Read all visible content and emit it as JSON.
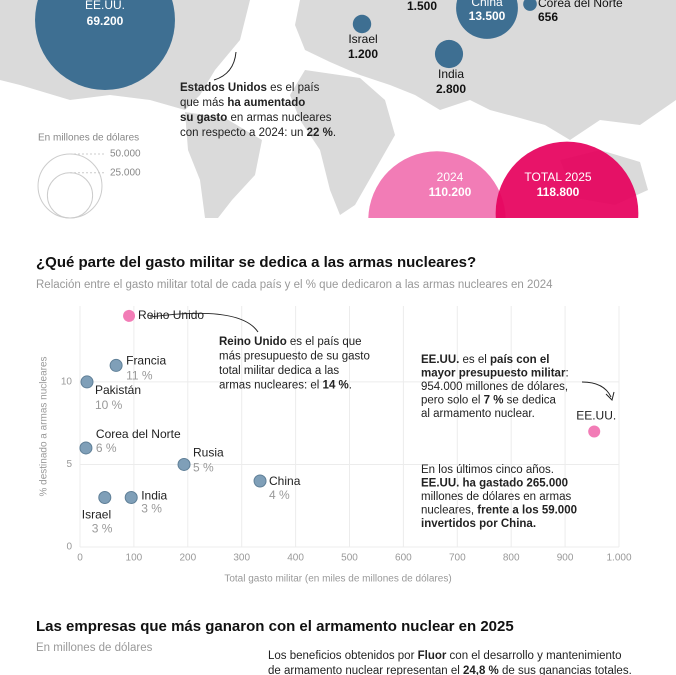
{
  "chart_data": [
    {
      "type": "bubble",
      "categories": [
        "EE.UU.",
        null,
        "China",
        "Corea del Norte",
        "Israel",
        "India"
      ],
      "values": [
        69200,
        1500,
        13500,
        656,
        1200,
        2800
      ],
      "value_labels": [
        "69.200",
        "1.500",
        "13.500",
        "656",
        "1.200",
        "2.800"
      ],
      "color": "#3e6f92",
      "size_legend_title": "En millones de dólares",
      "size_ticks": [
        {
          "value": 50000,
          "label": "50.000"
        },
        {
          "value": 25000,
          "label": "25.000"
        }
      ],
      "annotation": [
        [
          {
            "text": "Estados Unidos",
            "bold": true
          },
          {
            "text": " es el país",
            "bold": false
          }
        ],
        [
          {
            "text": "que más ",
            "bold": false
          },
          {
            "text": "ha aumentado",
            "bold": true
          }
        ],
        [
          {
            "text": "su gasto",
            "bold": true
          },
          {
            "text": " en armas nucleares",
            "bold": false
          }
        ],
        [
          {
            "text": "con respecto a 2024: un ",
            "bold": false
          },
          {
            "text": "22 %",
            "bold": true
          },
          {
            "text": ".",
            "bold": false
          }
        ]
      ]
    },
    {
      "type": "bubble",
      "categories": [
        "2024",
        "TOTAL 2025"
      ],
      "values": [
        110200,
        118800
      ],
      "value_labels": [
        "110.200",
        "118.800"
      ],
      "colors": [
        "#f27cb6",
        "#e6005c"
      ]
    },
    {
      "type": "scatter",
      "title": "¿Qué parte del gasto militar se dedica a las armas nucleares?",
      "subtitle": "Relación entre el gasto militar total de cada país y el % que dedicaron a las armas nucleares en 2024",
      "xlabel": "Total gasto militar (en miles de millones de dólares)",
      "ylabel": "% destinado a armas nucleares",
      "categories": [
        "Reino Unido",
        "Francia",
        "Pakistán",
        "Corea del Norte",
        "Rusia",
        "China",
        "India",
        "Israel",
        "EE.UU."
      ],
      "x": [
        91,
        67,
        13,
        11,
        193,
        334,
        95,
        46,
        954
      ],
      "values": [
        14,
        11,
        10,
        6,
        5,
        4,
        3,
        3,
        7
      ],
      "value_labels": [
        null,
        "11 %",
        "10 %",
        "6 %",
        "5 %",
        "4 %",
        "3 %",
        "3 %",
        null
      ],
      "colors": [
        "#f27cb6",
        "#7f9fb8",
        "#7f9fb8",
        "#7f9fb8",
        "#7f9fb8",
        "#7f9fb8",
        "#7f9fb8",
        "#7f9fb8",
        "#f27cb6"
      ],
      "xlim": [
        0,
        1000
      ],
      "ylim": [
        0,
        14.6
      ],
      "xticks": [
        0,
        100,
        200,
        300,
        400,
        500,
        600,
        700,
        800,
        900,
        {
          "value": 1000,
          "label": "1.000"
        }
      ],
      "yticks": [
        0,
        5,
        10
      ],
      "grid": true,
      "annotations": [
        [
          [
            {
              "text": "Reino Unido",
              "bold": true
            },
            {
              "text": " es el país que",
              "bold": false
            }
          ],
          [
            {
              "text": "más presupuesto de su gasto",
              "bold": false
            }
          ],
          [
            {
              "text": "total militar dedica a las",
              "bold": false
            }
          ],
          [
            {
              "text": "armas nucleares: el ",
              "bold": false
            },
            {
              "text": "14 %",
              "bold": true
            },
            {
              "text": ".",
              "bold": false
            }
          ]
        ],
        [
          [
            {
              "text": "EE.UU.",
              "bold": true
            },
            {
              "text": " es el ",
              "bold": false
            },
            {
              "text": "país con el",
              "bold": true
            }
          ],
          [
            {
              "text": "mayor presupuesto militar",
              "bold": true
            },
            {
              "text": ":",
              "bold": false
            }
          ],
          [
            {
              "text": "954.000 millones de dólares,",
              "bold": false
            }
          ],
          [
            {
              "text": "pero solo el ",
              "bold": false
            },
            {
              "text": "7 %",
              "bold": true
            },
            {
              "text": " se dedica",
              "bold": false
            }
          ],
          [
            {
              "text": "al armamento nuclear.",
              "bold": false
            }
          ]
        ],
        [
          [
            {
              "text": "En los últimos cinco años.",
              "bold": false
            }
          ],
          [
            {
              "text": "EE.UU. ha gastado 265.000",
              "bold": true
            }
          ],
          [
            {
              "text": "millones de dólares en armas",
              "bold": false
            }
          ],
          [
            {
              "text": "nucleares, ",
              "bold": false
            },
            {
              "text": "frente a los 59.000",
              "bold": true
            }
          ],
          [
            {
              "text": "invertidos por China.",
              "bold": true
            }
          ]
        ]
      ]
    }
  ],
  "companies": {
    "title": "Las empresas que más ganaron con el armamento nuclear en 2025",
    "subtitle": "En millones de dólares",
    "note": [
      [
        {
          "text": "Los beneficios obtenidos por ",
          "bold": false
        },
        {
          "text": "Fluor",
          "bold": true
        },
        {
          "text": " con el desarrollo y mantenimiento",
          "bold": false
        }
      ],
      [
        {
          "text": "de armamento nuclear representan el ",
          "bold": false
        },
        {
          "text": "24,8 %",
          "bold": true
        },
        {
          "text": " de sus ganancias totales.",
          "bold": false
        }
      ]
    ]
  }
}
